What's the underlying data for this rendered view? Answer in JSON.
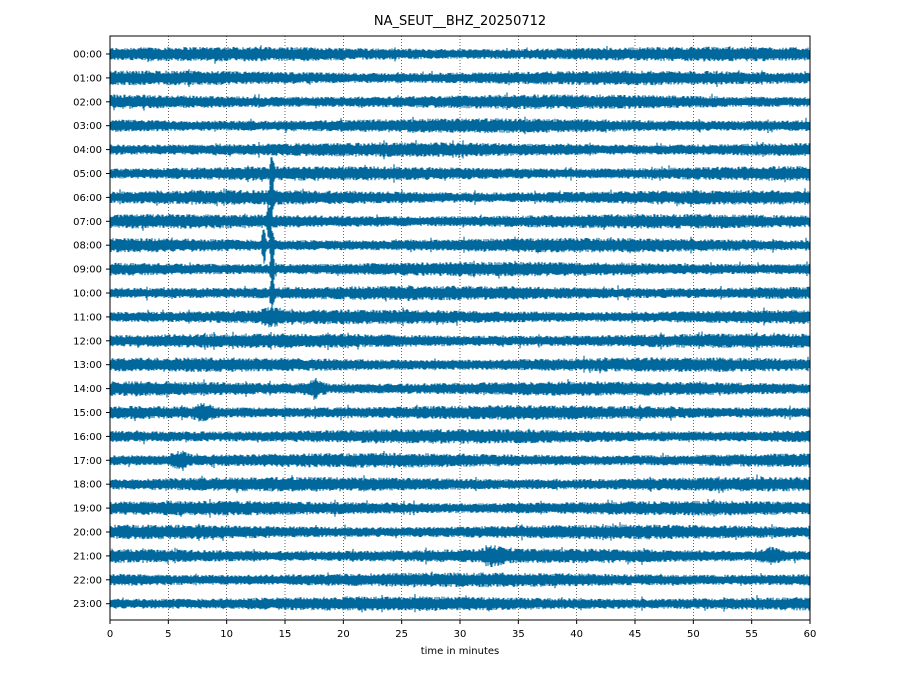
{
  "chart_data": {
    "type": "line",
    "title": "NA_SEUT__BHZ_20250712",
    "xlabel": "time in minutes",
    "ylabel": "",
    "xlim": [
      0,
      60
    ],
    "x_ticks": [
      "0",
      "5",
      "10",
      "15",
      "20",
      "25",
      "30",
      "35",
      "40",
      "45",
      "50",
      "55",
      "60"
    ],
    "rows": [
      "00:00",
      "01:00",
      "02:00",
      "03:00",
      "04:00",
      "05:00",
      "06:00",
      "07:00",
      "08:00",
      "09:00",
      "10:00",
      "11:00",
      "12:00",
      "13:00",
      "14:00",
      "15:00",
      "16:00",
      "17:00",
      "18:00",
      "19:00",
      "20:00",
      "21:00",
      "22:00",
      "23:00"
    ],
    "grid": "vertical dotted at each 5-minute tick",
    "line_color": "#00689c",
    "events": [
      {
        "row": "05:00",
        "minute": 13.9,
        "note": "large amplitude spike"
      },
      {
        "row": "06:00",
        "minute": 13.9,
        "note": "large amplitude spike"
      },
      {
        "row": "07:00",
        "minute": 13.6,
        "note": "large amplitude spike"
      },
      {
        "row": "08:00",
        "minute": 13.2,
        "note": "large amplitude burst"
      },
      {
        "row": "08:00",
        "minute": 13.9,
        "note": "large amplitude burst"
      },
      {
        "row": "09:00",
        "minute": 13.9,
        "note": "large amplitude spike"
      },
      {
        "row": "10:00",
        "minute": 13.9,
        "note": "large amplitude spike"
      },
      {
        "row": "11:00",
        "minute": 13.9,
        "note": "spike"
      },
      {
        "row": "14:00",
        "minute": 17.5,
        "note": "burst"
      },
      {
        "row": "15:00",
        "minute": 8.0,
        "note": "burst"
      },
      {
        "row": "17:00",
        "minute": 6.0,
        "note": "burst"
      },
      {
        "row": "21:00",
        "minute": 32.8,
        "note": "burst"
      },
      {
        "row": "21:00",
        "minute": 56.7,
        "note": "burst"
      }
    ]
  }
}
